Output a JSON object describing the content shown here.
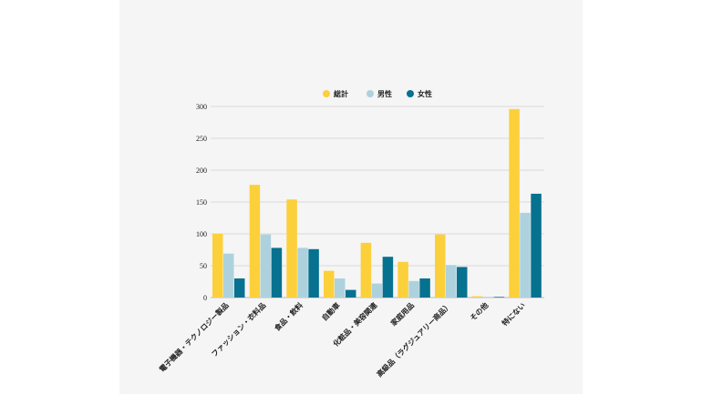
{
  "chart_data": {
    "type": "bar",
    "categories": [
      "電子機器・テクノロジー製品",
      "ファッション・衣料品",
      "食品・飲料",
      "自動車",
      "化粧品・美容関連",
      "家庭用品",
      "高級品（ラグジュアリー商品）",
      "その他",
      "特にない"
    ],
    "series": [
      {
        "name": "総計",
        "color": "#fcd03a",
        "values": [
          100,
          177,
          154,
          42,
          86,
          56,
          99,
          2,
          296
        ]
      },
      {
        "name": "男性",
        "color": "#add2de",
        "values": [
          69,
          99,
          78,
          30,
          22,
          26,
          51,
          1,
          133
        ]
      },
      {
        "name": "女性",
        "color": "#077190",
        "values": [
          30,
          78,
          76,
          12,
          64,
          30,
          48,
          1,
          163
        ]
      }
    ],
    "yticks": [
      0,
      50,
      100,
      150,
      200,
      250,
      300
    ],
    "ylim": [
      0,
      300
    ],
    "grid": true,
    "legend": "top-center"
  }
}
